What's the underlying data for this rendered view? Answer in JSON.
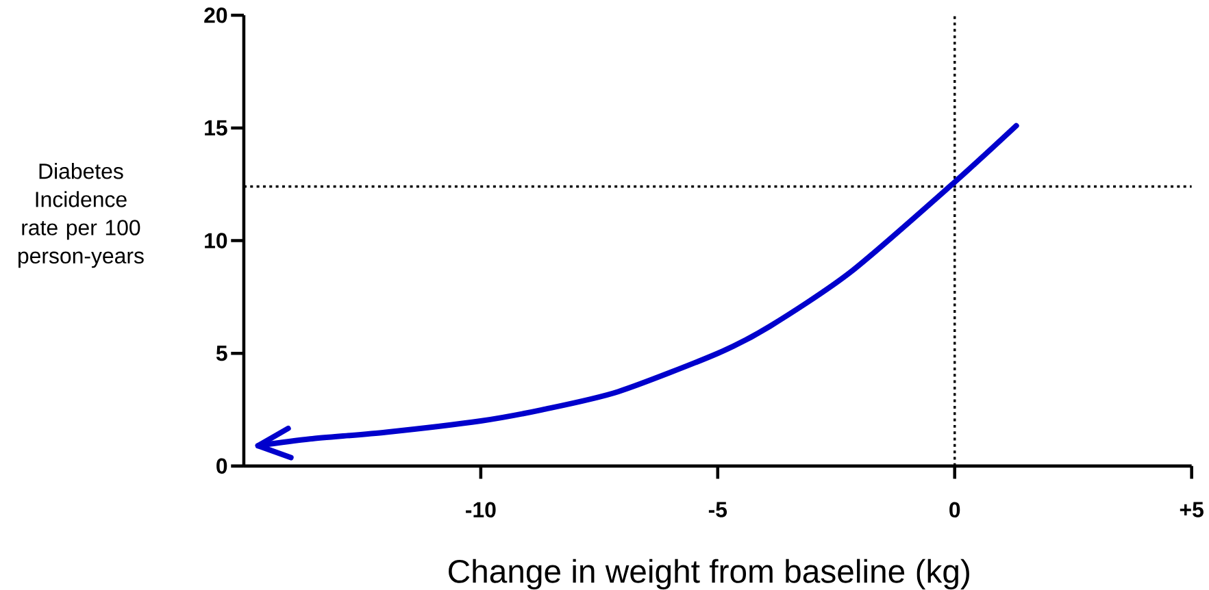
{
  "chart_data": {
    "type": "line",
    "xlabel": "Change in weight from baseline (kg)",
    "ylabel": "Diabetes Incidence rate per 100 person-years",
    "x": [
      -14.7,
      -13.6,
      -12.0,
      -10.0,
      -8.7,
      -7.1,
      -5.0,
      -3.9,
      -2.2,
      0.0,
      1.3
    ],
    "series": [
      {
        "color": "#0000cc",
        "values": [
          0.9,
          1.2,
          1.5,
          2.0,
          2.5,
          3.3,
          5.0,
          6.2,
          8.6,
          12.6,
          15.1
        ]
      }
    ],
    "xlim": [
      -15,
      5
    ],
    "ylim": [
      0,
      20
    ],
    "xticks": [
      -10,
      -5,
      0,
      {
        "value": 5,
        "label": "+5"
      }
    ],
    "yticks": [
      0,
      5,
      10,
      15,
      20
    ],
    "ref_lines": [
      {
        "axis": "y",
        "value": 12.4,
        "line_style": "dotted",
        "color": "#000000"
      },
      {
        "axis": "x",
        "value": 0,
        "line_style": "dotted",
        "color": "#000000"
      }
    ]
  }
}
